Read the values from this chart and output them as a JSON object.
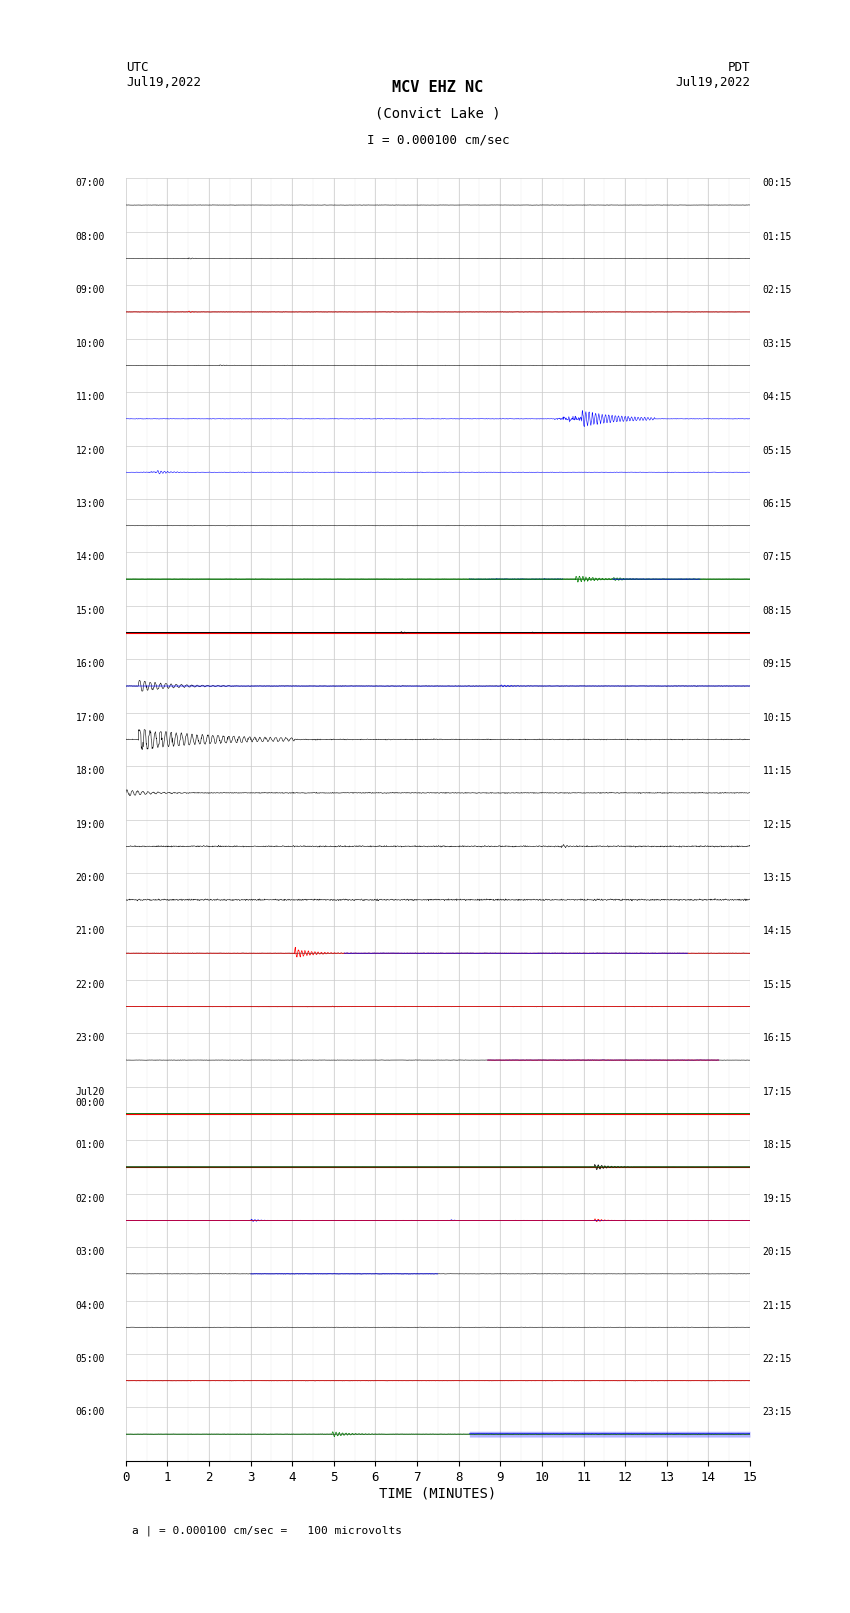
{
  "title_line1": "MCV EHZ NC",
  "title_line2": "(Convict Lake )",
  "title_line3": "I = 0.000100 cm/sec",
  "left_date_label": "UTC\nJul19,2022",
  "right_date_label": "PDT\nJul19,2022",
  "footnote": "= 0.000100 cm/sec =   100 microvolts",
  "footnote_prefix": "a |",
  "xlabel": "TIME (MINUTES)",
  "utc_times": [
    "07:00",
    "08:00",
    "09:00",
    "10:00",
    "11:00",
    "12:00",
    "13:00",
    "14:00",
    "15:00",
    "16:00",
    "17:00",
    "18:00",
    "19:00",
    "20:00",
    "21:00",
    "22:00",
    "23:00",
    "Jul20\n00:00",
    "01:00",
    "02:00",
    "03:00",
    "04:00",
    "05:00",
    "06:00",
    ""
  ],
  "pdt_times": [
    "00:15",
    "01:15",
    "02:15",
    "03:15",
    "04:15",
    "05:15",
    "06:15",
    "07:15",
    "08:15",
    "09:15",
    "10:15",
    "11:15",
    "12:15",
    "13:15",
    "14:15",
    "15:15",
    "16:15",
    "17:15",
    "18:15",
    "19:15",
    "20:15",
    "21:15",
    "22:15",
    "23:15",
    ""
  ],
  "n_rows": 24,
  "minutes_per_row": 15,
  "bg_color": "#ffffff",
  "grid_color": "#cccccc",
  "figsize": [
    8.5,
    16.13
  ],
  "dpi": 100
}
